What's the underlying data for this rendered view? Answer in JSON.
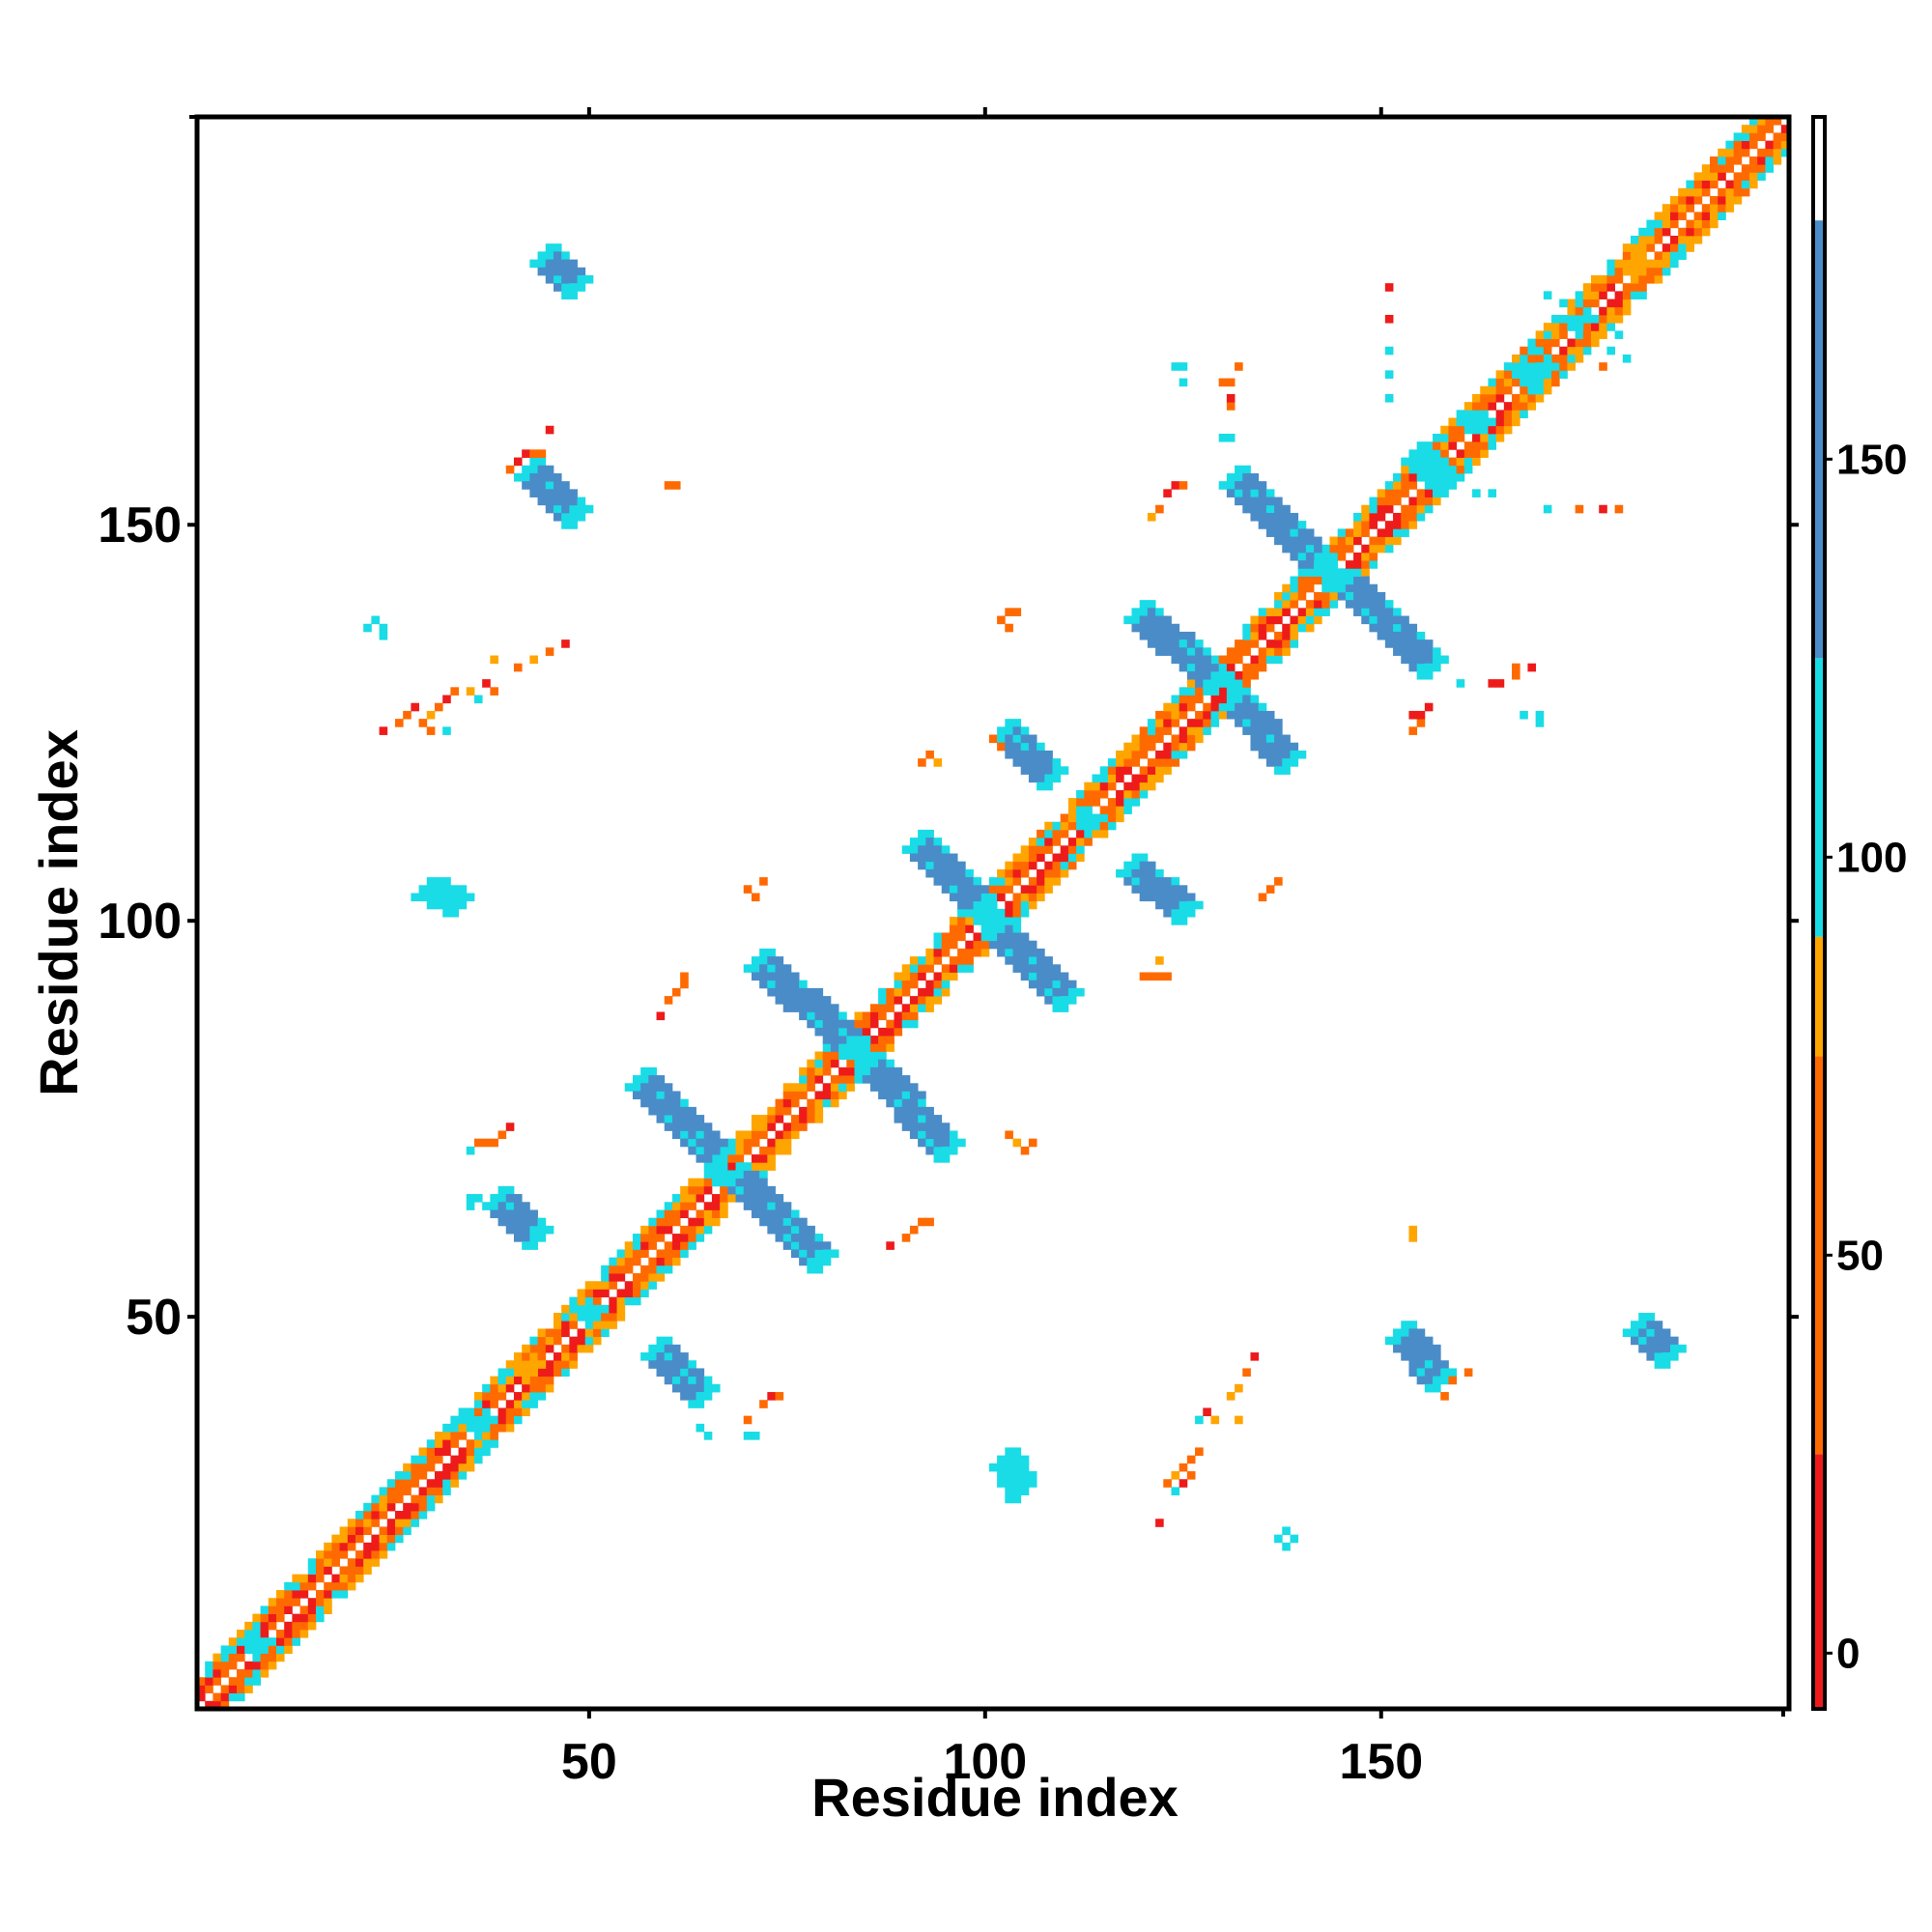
{
  "chart_data": {
    "type": "heatmap",
    "title": "",
    "xlabel": "Residue index",
    "ylabel": "Residue index",
    "xlim": [
      1,
      201
    ],
    "ylim": [
      1,
      201
    ],
    "x_ticks": [
      50,
      100,
      150
    ],
    "y_ticks": [
      50,
      100,
      150
    ],
    "x_tick_labels": [
      "50",
      "100",
      "150"
    ],
    "y_tick_labels": [
      "50",
      "100",
      "150"
    ],
    "grid": false,
    "colorbar": {
      "placement": "right",
      "range": [
        -7,
        193
      ],
      "ticks": [
        0,
        50,
        100,
        150
      ],
      "tick_labels": [
        "0",
        "50",
        "100",
        "150"
      ],
      "bands": [
        {
          "from": -7,
          "to": 25,
          "color": "#ee1b1b"
        },
        {
          "from": 25,
          "to": 75,
          "color": "#ff6a00"
        },
        {
          "from": 75,
          "to": 90,
          "color": "#ffa500"
        },
        {
          "from": 90,
          "to": 125,
          "color": "#19dce6"
        },
        {
          "from": 125,
          "to": 180,
          "color": "#4a8cc8"
        },
        {
          "from": 180,
          "to": 193,
          "color": "#ffffff"
        }
      ]
    },
    "colors": {
      "red": "#ee1b1b",
      "orange": "#ff6a00",
      "amber": "#ffa500",
      "cyan": "#19dce6",
      "blue": "#4a8cc8"
    },
    "strands": [
      {
        "x": [
          56,
          66
        ],
        "y": [
          80,
          70
        ],
        "w": 3,
        "color": "blue",
        "end_color": "cyan"
      },
      {
        "x": [
          68,
          79
        ],
        "y": [
          68,
          57
        ],
        "w": 3,
        "color": "blue",
        "end_color": "cyan"
      },
      {
        "x": [
          71,
          83
        ],
        "y": [
          95,
          84
        ],
        "w": 3,
        "color": "blue",
        "end_color": "cyan"
      },
      {
        "x": [
          85,
          95
        ],
        "y": [
          82,
          71
        ],
        "w": 3,
        "color": "blue",
        "end_color": "cyan"
      },
      {
        "x": [
          91,
          99
        ],
        "y": [
          110,
          102
        ],
        "w": 3,
        "color": "blue",
        "end_color": "cyan"
      },
      {
        "x": [
          101,
          110
        ],
        "y": [
          99,
          90
        ],
        "w": 3,
        "color": "blue",
        "end_color": "cyan"
      },
      {
        "x": [
          102,
          108
        ],
        "y": [
          124,
          118
        ],
        "w": 3,
        "color": "blue",
        "end_color": "cyan"
      },
      {
        "x": [
          118,
          125
        ],
        "y": [
          107,
          101
        ],
        "w": 3,
        "color": "blue",
        "end_color": "cyan"
      },
      {
        "x": [
          119,
          129
        ],
        "y": [
          139,
          130
        ],
        "w": 3,
        "color": "blue",
        "end_color": "cyan"
      },
      {
        "x": [
          131,
          138
        ],
        "y": [
          128,
          120
        ],
        "w": 3,
        "color": "blue",
        "end_color": "cyan"
      },
      {
        "x": [
          131,
          142
        ],
        "y": [
          156,
          145
        ],
        "w": 3,
        "color": "blue",
        "end_color": "cyan"
      },
      {
        "x": [
          145,
          156
        ],
        "y": [
          143,
          132
        ],
        "w": 3,
        "color": "blue",
        "end_color": "cyan"
      },
      {
        "x": [
          38,
          43
        ],
        "y": [
          65,
          60
        ],
        "w": 3,
        "color": "blue",
        "end_color": "cyan"
      },
      {
        "x": [
          58,
          64
        ],
        "y": [
          46,
          40
        ],
        "w": 3,
        "color": "blue",
        "end_color": "cyan"
      },
      {
        "x": [
          152,
          157
        ],
        "y": [
          48,
          42
        ],
        "w": 3,
        "color": "blue",
        "end_color": "cyan"
      },
      {
        "x": [
          182,
          186
        ],
        "y": [
          49,
          45
        ],
        "w": 3,
        "color": "blue",
        "end_color": "cyan"
      },
      {
        "x": [
          42,
          48
        ],
        "y": [
          157,
          151
        ],
        "w": 3,
        "color": "blue",
        "end_color": "cyan"
      },
      {
        "x": [
          44,
          48
        ],
        "y": [
          184,
          180
        ],
        "w": 3,
        "color": "blue",
        "end_color": "cyan"
      },
      {
        "x": [
          29,
          33
        ],
        "y": [
          104,
          102
        ],
        "w": 2,
        "color": "cyan",
        "end_color": "cyan"
      },
      {
        "x": [
          102,
          104
        ],
        "y": [
          32,
          28
        ],
        "w": 2,
        "color": "cyan",
        "end_color": "cyan"
      },
      {
        "x": [
          154,
          158
        ],
        "y": [
          159,
          155
        ],
        "w": 3,
        "color": "cyan",
        "end_color": "cyan"
      }
    ],
    "hotspots": [
      {
        "x": 100,
        "y": 101,
        "r": 2,
        "color": "cyan"
      },
      {
        "x": 84,
        "y": 84,
        "r": 2,
        "color": "cyan"
      },
      {
        "x": 67,
        "y": 68,
        "r": 2,
        "color": "cyan"
      },
      {
        "x": 130,
        "y": 130,
        "r": 2,
        "color": "cyan"
      },
      {
        "x": 143,
        "y": 144,
        "r": 2,
        "color": "cyan"
      },
      {
        "x": 113,
        "y": 113,
        "r": 2,
        "color": "cyan"
      },
      {
        "x": 36,
        "y": 37,
        "r": 2,
        "color": "cyan"
      },
      {
        "x": 50,
        "y": 51,
        "r": 2,
        "color": "cyan"
      },
      {
        "x": 169,
        "y": 170,
        "r": 3,
        "color": "cyan"
      },
      {
        "x": 175,
        "y": 176,
        "r": 2,
        "color": "cyan"
      },
      {
        "x": 162,
        "y": 163,
        "r": 2,
        "color": "cyan"
      },
      {
        "x": 8,
        "y": 9,
        "r": 2,
        "color": "cyan"
      },
      {
        "x": 42,
        "y": 44,
        "r": 2,
        "color": "amber"
      },
      {
        "x": 182,
        "y": 183,
        "r": 2,
        "color": "amber"
      }
    ],
    "scatter": [
      {
        "x": 23,
        "y": 138,
        "color": "cyan"
      },
      {
        "x": 24,
        "y": 137,
        "color": "cyan"
      },
      {
        "x": 22,
        "y": 137,
        "color": "cyan"
      },
      {
        "x": 24,
        "y": 136,
        "color": "cyan"
      },
      {
        "x": 26,
        "y": 125,
        "color": "orange"
      },
      {
        "x": 27,
        "y": 126,
        "color": "orange"
      },
      {
        "x": 28,
        "y": 127,
        "color": "red"
      },
      {
        "x": 29,
        "y": 125,
        "color": "orange"
      },
      {
        "x": 30,
        "y": 126,
        "color": "amber"
      },
      {
        "x": 31,
        "y": 127,
        "color": "orange"
      },
      {
        "x": 32,
        "y": 128,
        "color": "red"
      },
      {
        "x": 33,
        "y": 129,
        "color": "orange"
      },
      {
        "x": 35,
        "y": 129,
        "color": "amber"
      },
      {
        "x": 36,
        "y": 128,
        "color": "cyan"
      },
      {
        "x": 37,
        "y": 130,
        "color": "red"
      },
      {
        "x": 38,
        "y": 129,
        "color": "orange"
      },
      {
        "x": 24,
        "y": 124,
        "color": "red"
      },
      {
        "x": 30,
        "y": 124,
        "color": "orange"
      },
      {
        "x": 32,
        "y": 124,
        "color": "cyan"
      },
      {
        "x": 38,
        "y": 133,
        "color": "amber"
      },
      {
        "x": 41,
        "y": 132,
        "color": "orange"
      },
      {
        "x": 43,
        "y": 133,
        "color": "amber"
      },
      {
        "x": 45,
        "y": 134,
        "color": "orange"
      },
      {
        "x": 47,
        "y": 135,
        "color": "red"
      },
      {
        "x": 40,
        "y": 157,
        "color": "orange"
      },
      {
        "x": 41,
        "y": 158,
        "color": "red"
      },
      {
        "x": 42,
        "y": 159,
        "color": "red"
      },
      {
        "x": 43,
        "y": 159,
        "color": "orange"
      },
      {
        "x": 44,
        "y": 159,
        "color": "orange"
      },
      {
        "x": 45,
        "y": 162,
        "color": "red"
      },
      {
        "x": 60,
        "y": 155,
        "color": "orange"
      },
      {
        "x": 61,
        "y": 155,
        "color": "orange"
      },
      {
        "x": 35,
        "y": 71,
        "color": "cyan"
      },
      {
        "x": 36,
        "y": 72,
        "color": "orange"
      },
      {
        "x": 37,
        "y": 72,
        "color": "orange"
      },
      {
        "x": 38,
        "y": 72,
        "color": "orange"
      },
      {
        "x": 40,
        "y": 74,
        "color": "red"
      },
      {
        "x": 39,
        "y": 73,
        "color": "orange"
      },
      {
        "x": 35,
        "y": 65,
        "color": "cyan"
      },
      {
        "x": 36,
        "y": 65,
        "color": "cyan"
      },
      {
        "x": 35,
        "y": 64,
        "color": "cyan"
      },
      {
        "x": 59,
        "y": 88,
        "color": "red"
      },
      {
        "x": 60,
        "y": 90,
        "color": "orange"
      },
      {
        "x": 61,
        "y": 91,
        "color": "orange"
      },
      {
        "x": 62,
        "y": 92,
        "color": "orange"
      },
      {
        "x": 62,
        "y": 93,
        "color": "orange"
      },
      {
        "x": 70,
        "y": 104,
        "color": "orange"
      },
      {
        "x": 71,
        "y": 103,
        "color": "orange"
      },
      {
        "x": 72,
        "y": 105,
        "color": "orange"
      },
      {
        "x": 70,
        "y": 35,
        "color": "cyan"
      },
      {
        "x": 71,
        "y": 35,
        "color": "cyan"
      },
      {
        "x": 70,
        "y": 37,
        "color": "orange"
      },
      {
        "x": 72,
        "y": 39,
        "color": "orange"
      },
      {
        "x": 73,
        "y": 40,
        "color": "red"
      },
      {
        "x": 74,
        "y": 40,
        "color": "orange"
      },
      {
        "x": 65,
        "y": 35,
        "color": "cyan"
      },
      {
        "x": 64,
        "y": 36,
        "color": "cyan"
      },
      {
        "x": 88,
        "y": 59,
        "color": "red"
      },
      {
        "x": 90,
        "y": 60,
        "color": "orange"
      },
      {
        "x": 91,
        "y": 61,
        "color": "orange"
      },
      {
        "x": 92,
        "y": 62,
        "color": "orange"
      },
      {
        "x": 93,
        "y": 62,
        "color": "orange"
      },
      {
        "x": 103,
        "y": 73,
        "color": "orange"
      },
      {
        "x": 104,
        "y": 72,
        "color": "amber"
      },
      {
        "x": 105,
        "y": 71,
        "color": "orange"
      },
      {
        "x": 106,
        "y": 72,
        "color": "orange"
      },
      {
        "x": 102,
        "y": 138,
        "color": "orange"
      },
      {
        "x": 103,
        "y": 139,
        "color": "orange"
      },
      {
        "x": 104,
        "y": 139,
        "color": "orange"
      },
      {
        "x": 103,
        "y": 137,
        "color": "orange"
      },
      {
        "x": 92,
        "y": 120,
        "color": "orange"
      },
      {
        "x": 93,
        "y": 121,
        "color": "orange"
      },
      {
        "x": 94,
        "y": 120,
        "color": "amber"
      },
      {
        "x": 101,
        "y": 123,
        "color": "orange"
      },
      {
        "x": 102,
        "y": 122,
        "color": "orange"
      },
      {
        "x": 120,
        "y": 93,
        "color": "orange"
      },
      {
        "x": 121,
        "y": 93,
        "color": "orange"
      },
      {
        "x": 122,
        "y": 93,
        "color": "orange"
      },
      {
        "x": 123,
        "y": 93,
        "color": "orange"
      },
      {
        "x": 122,
        "y": 95,
        "color": "amber"
      },
      {
        "x": 135,
        "y": 103,
        "color": "orange"
      },
      {
        "x": 136,
        "y": 104,
        "color": "orange"
      },
      {
        "x": 137,
        "y": 105,
        "color": "orange"
      },
      {
        "x": 123,
        "y": 29,
        "color": "orange"
      },
      {
        "x": 124,
        "y": 30,
        "color": "amber"
      },
      {
        "x": 125,
        "y": 31,
        "color": "orange"
      },
      {
        "x": 126,
        "y": 32,
        "color": "orange"
      },
      {
        "x": 127,
        "y": 33,
        "color": "orange"
      },
      {
        "x": 124,
        "y": 28,
        "color": "cyan"
      },
      {
        "x": 125,
        "y": 29,
        "color": "red"
      },
      {
        "x": 122,
        "y": 24,
        "color": "red"
      },
      {
        "x": 126,
        "y": 30,
        "color": "orange"
      },
      {
        "x": 127,
        "y": 37,
        "color": "cyan"
      },
      {
        "x": 128,
        "y": 38,
        "color": "red"
      },
      {
        "x": 129,
        "y": 37,
        "color": "amber"
      },
      {
        "x": 131,
        "y": 40,
        "color": "amber"
      },
      {
        "x": 132,
        "y": 41,
        "color": "amber"
      },
      {
        "x": 133,
        "y": 43,
        "color": "orange"
      },
      {
        "x": 134,
        "y": 45,
        "color": "red"
      },
      {
        "x": 132,
        "y": 37,
        "color": "amber"
      },
      {
        "x": 137,
        "y": 22,
        "color": "cyan"
      },
      {
        "x": 138,
        "y": 21,
        "color": "cyan"
      },
      {
        "x": 139,
        "y": 22,
        "color": "cyan"
      },
      {
        "x": 138,
        "y": 23,
        "color": "cyan"
      },
      {
        "x": 154,
        "y": 60,
        "color": "amber"
      },
      {
        "x": 154,
        "y": 61,
        "color": "amber"
      },
      {
        "x": 158,
        "y": 40,
        "color": "orange"
      },
      {
        "x": 159,
        "y": 42,
        "color": "orange"
      },
      {
        "x": 161,
        "y": 43,
        "color": "orange"
      },
      {
        "x": 121,
        "y": 151,
        "color": "amber"
      },
      {
        "x": 122,
        "y": 152,
        "color": "orange"
      },
      {
        "x": 123,
        "y": 154,
        "color": "red"
      },
      {
        "x": 124,
        "y": 155,
        "color": "red"
      },
      {
        "x": 125,
        "y": 155,
        "color": "orange"
      },
      {
        "x": 124,
        "y": 170,
        "color": "cyan"
      },
      {
        "x": 125,
        "y": 170,
        "color": "cyan"
      },
      {
        "x": 125,
        "y": 168,
        "color": "cyan"
      },
      {
        "x": 130,
        "y": 168,
        "color": "orange"
      },
      {
        "x": 131,
        "y": 168,
        "color": "orange"
      },
      {
        "x": 132,
        "y": 170,
        "color": "orange"
      },
      {
        "x": 131,
        "y": 165,
        "color": "orange"
      },
      {
        "x": 131,
        "y": 166,
        "color": "red"
      },
      {
        "x": 130,
        "y": 161,
        "color": "cyan"
      },
      {
        "x": 131,
        "y": 161,
        "color": "cyan"
      },
      {
        "x": 151,
        "y": 180,
        "color": "red"
      },
      {
        "x": 151,
        "y": 176,
        "color": "red"
      },
      {
        "x": 151,
        "y": 172,
        "color": "cyan"
      },
      {
        "x": 151,
        "y": 169,
        "color": "cyan"
      },
      {
        "x": 151,
        "y": 166,
        "color": "cyan"
      },
      {
        "x": 154,
        "y": 124,
        "color": "orange"
      },
      {
        "x": 155,
        "y": 125,
        "color": "orange"
      },
      {
        "x": 154,
        "y": 126,
        "color": "red"
      },
      {
        "x": 155,
        "y": 126,
        "color": "red"
      },
      {
        "x": 156,
        "y": 127,
        "color": "red"
      },
      {
        "x": 160,
        "y": 130,
        "color": "cyan"
      },
      {
        "x": 164,
        "y": 130,
        "color": "red"
      },
      {
        "x": 165,
        "y": 130,
        "color": "red"
      },
      {
        "x": 167,
        "y": 131,
        "color": "orange"
      },
      {
        "x": 167,
        "y": 132,
        "color": "orange"
      },
      {
        "x": 169,
        "y": 132,
        "color": "red"
      },
      {
        "x": 168,
        "y": 126,
        "color": "cyan"
      },
      {
        "x": 170,
        "y": 125,
        "color": "cyan"
      },
      {
        "x": 170,
        "y": 126,
        "color": "cyan"
      },
      {
        "x": 158,
        "y": 154,
        "color": "cyan"
      },
      {
        "x": 162,
        "y": 154,
        "color": "cyan"
      },
      {
        "x": 164,
        "y": 154,
        "color": "cyan"
      },
      {
        "x": 171,
        "y": 152,
        "color": "cyan"
      },
      {
        "x": 175,
        "y": 152,
        "color": "orange"
      },
      {
        "x": 178,
        "y": 152,
        "color": "red"
      },
      {
        "x": 180,
        "y": 152,
        "color": "orange"
      },
      {
        "x": 171,
        "y": 179,
        "color": "cyan"
      },
      {
        "x": 173,
        "y": 178,
        "color": "cyan"
      },
      {
        "x": 172,
        "y": 176,
        "color": "cyan"
      },
      {
        "x": 176,
        "y": 175,
        "color": "orange"
      },
      {
        "x": 177,
        "y": 173,
        "color": "amber"
      },
      {
        "x": 179,
        "y": 172,
        "color": "cyan"
      },
      {
        "x": 181,
        "y": 171,
        "color": "cyan"
      },
      {
        "x": 180,
        "y": 174,
        "color": "cyan"
      },
      {
        "x": 178,
        "y": 170,
        "color": "orange"
      }
    ]
  }
}
